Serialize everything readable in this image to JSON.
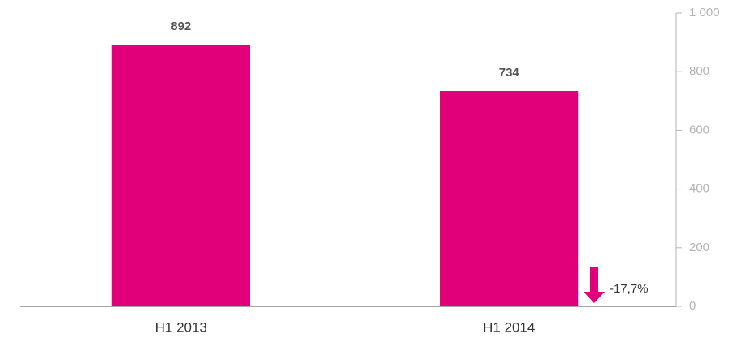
{
  "chart_data": {
    "type": "bar",
    "categories": [
      "H1 2013",
      "H1 2014"
    ],
    "values": [
      892,
      734
    ],
    "color": "#e2007a",
    "ylim": [
      0,
      1000
    ],
    "yticks": [
      0,
      200,
      400,
      600,
      800,
      {
        "value": 1000,
        "label": "1 000"
      }
    ],
    "annotation": "-17,7%"
  }
}
